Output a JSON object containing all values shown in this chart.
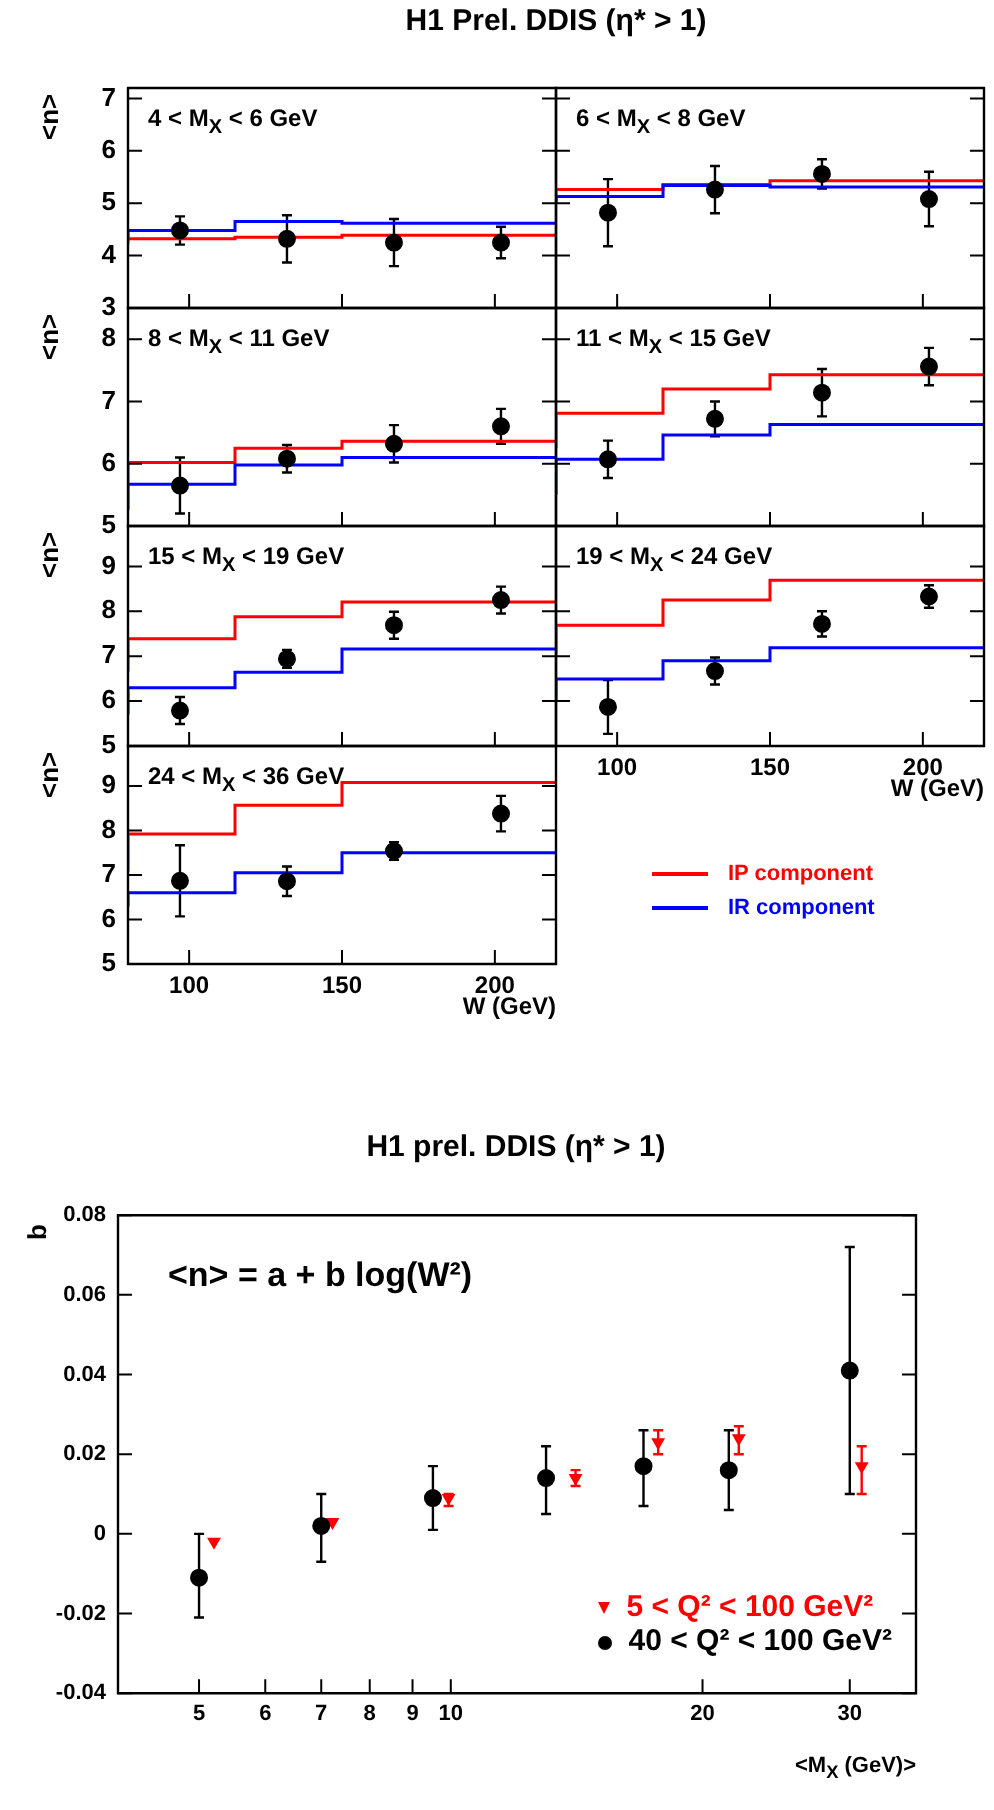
{
  "chart_data": [
    {
      "type": "step",
      "title": "H1 Prel. DDIS (η* > 1)",
      "ylabel": "<n>",
      "annotations": [
        "4 < M$_{X}$ < 6 GeV"
      ],
      "xlim": [
        80,
        220
      ],
      "xticks": [
        100,
        150,
        200
      ],
      "ylim": [
        3,
        7.2
      ],
      "yticks": [
        3,
        4,
        5,
        6,
        7
      ],
      "tick_labels": "y",
      "grid": false,
      "series": [
        {
          "color": "#ff0000",
          "x": [
            80,
            115,
            150,
            185,
            220
          ],
          "values": [
            4.23,
            4.32,
            4.35,
            4.39,
            4.39
          ]
        },
        {
          "color": "#0000ff",
          "x": [
            80,
            115,
            150,
            185,
            220
          ],
          "values": [
            4.34,
            4.48,
            4.65,
            4.62,
            4.62
          ]
        },
        {
          "type": "scatter",
          "color": "#000000",
          "marker": "circle",
          "x": [
            97,
            132,
            167,
            202
          ],
          "values": [
            4.48,
            4.32,
            4.25,
            4.25
          ],
          "errors": [
            0.27,
            0.45,
            0.45,
            0.3
          ]
        }
      ]
    },
    {
      "type": "step",
      "annotations": [
        "6 < M$_{X}$ < 8 GeV"
      ],
      "xlim": [
        80,
        220
      ],
      "xticks": [
        100,
        150,
        200
      ],
      "ylim": [
        3,
        7.2
      ],
      "yticks": [
        3,
        4,
        5,
        6,
        7
      ],
      "tick_labels": false,
      "grid": false,
      "series": [
        {
          "color": "#ff0000",
          "x": [
            80,
            115,
            150,
            185,
            220
          ],
          "values": [
            5.04,
            5.26,
            5.36,
            5.43,
            5.43
          ]
        },
        {
          "color": "#0000ff",
          "x": [
            80,
            115,
            150,
            185,
            220
          ],
          "values": [
            4.99,
            5.13,
            5.34,
            5.31,
            5.31
          ]
        },
        {
          "type": "scatter",
          "color": "#000000",
          "marker": "circle",
          "x": [
            97,
            132,
            167,
            202
          ],
          "values": [
            4.82,
            5.26,
            5.56,
            5.08
          ],
          "errors": [
            0.64,
            0.45,
            0.28,
            0.52
          ]
        }
      ]
    },
    {
      "type": "step",
      "ylabel": "<n>",
      "annotations": [
        "8 < M$_{X}$ < 11 GeV"
      ],
      "xlim": [
        80,
        220
      ],
      "xticks": [
        100,
        150,
        200
      ],
      "ylim": [
        5,
        8.5
      ],
      "yticks": [
        5,
        6,
        7,
        8
      ],
      "tick_labels": "y",
      "grid": false,
      "series": [
        {
          "color": "#ff0000",
          "x": [
            80,
            115,
            150,
            185,
            220
          ],
          "values": [
            5.67,
            6.02,
            6.25,
            6.36,
            6.36
          ]
        },
        {
          "color": "#0000ff",
          "x": [
            80,
            115,
            150,
            185,
            220
          ],
          "values": [
            5.26,
            5.67,
            5.98,
            6.1,
            6.1
          ]
        },
        {
          "type": "scatter",
          "color": "#000000",
          "marker": "circle",
          "x": [
            97,
            132,
            167,
            202
          ],
          "values": [
            5.65,
            6.08,
            6.32,
            6.6
          ],
          "errors": [
            0.45,
            0.22,
            0.3,
            0.28
          ]
        }
      ]
    },
    {
      "type": "step",
      "annotations": [
        "11 < M$_{X}$ < 15 GeV"
      ],
      "xlim": [
        80,
        220
      ],
      "xticks": [
        100,
        150,
        200
      ],
      "ylim": [
        5,
        8.5
      ],
      "yticks": [
        5,
        6,
        7,
        8
      ],
      "tick_labels": false,
      "grid": false,
      "series": [
        {
          "color": "#ff0000",
          "x": [
            80,
            115,
            150,
            185,
            220
          ],
          "values": [
            6.25,
            6.81,
            7.2,
            7.43,
            7.43
          ]
        },
        {
          "color": "#0000ff",
          "x": [
            80,
            115,
            150,
            185,
            220
          ],
          "values": [
            5.5,
            6.07,
            6.46,
            6.63,
            6.63
          ]
        },
        {
          "type": "scatter",
          "color": "#000000",
          "marker": "circle",
          "x": [
            97,
            132,
            167,
            202
          ],
          "values": [
            6.07,
            6.72,
            7.14,
            7.56
          ],
          "errors": [
            0.3,
            0.28,
            0.38,
            0.3
          ]
        }
      ]
    },
    {
      "type": "step",
      "ylabel": "<n>",
      "annotations": [
        "15 < M$_{X}$ < 19 GeV"
      ],
      "xlim": [
        80,
        220
      ],
      "xticks": [
        100,
        150,
        200
      ],
      "ylim": [
        5,
        9.9
      ],
      "yticks": [
        5,
        6,
        7,
        8,
        9
      ],
      "tick_labels": "y",
      "grid": false,
      "series": [
        {
          "color": "#ff0000",
          "x": [
            80,
            115,
            150,
            185,
            220
          ],
          "values": [
            6.66,
            7.39,
            7.88,
            8.21,
            8.21
          ]
        },
        {
          "color": "#0000ff",
          "x": [
            80,
            115,
            150,
            185,
            220
          ],
          "values": [
            5.7,
            6.3,
            6.64,
            7.16,
            7.16
          ]
        },
        {
          "type": "scatter",
          "color": "#000000",
          "marker": "circle",
          "x": [
            97,
            132,
            167,
            202
          ],
          "values": [
            5.79,
            6.94,
            7.69,
            8.25
          ],
          "errors": [
            0.3,
            0.2,
            0.3,
            0.3
          ]
        }
      ]
    },
    {
      "type": "step",
      "xlabel": "W (GeV)",
      "annotations": [
        "19 < M$_{X}$ < 24 GeV"
      ],
      "xlim": [
        80,
        220
      ],
      "xticks": [
        100,
        150,
        200
      ],
      "ylim": [
        5,
        9.9
      ],
      "yticks": [
        5,
        6,
        7,
        8,
        9
      ],
      "tick_labels": "x",
      "grid": false,
      "series": [
        {
          "color": "#ff0000",
          "x": [
            80,
            115,
            150,
            185,
            220
          ],
          "values": [
            7.04,
            7.69,
            8.25,
            8.69,
            8.69
          ]
        },
        {
          "color": "#0000ff",
          "x": [
            80,
            115,
            150,
            185,
            220
          ],
          "values": [
            6.0,
            6.49,
            6.9,
            7.19,
            7.19
          ]
        },
        {
          "type": "scatter",
          "color": "#000000",
          "marker": "circle",
          "x": [
            97,
            132,
            167,
            202
          ],
          "values": [
            5.87,
            6.67,
            7.72,
            8.33
          ],
          "errors": [
            0.6,
            0.3,
            0.28,
            0.25
          ]
        }
      ]
    },
    {
      "type": "step",
      "ylabel": "<n>",
      "xlabel": "W (GeV)",
      "annotations": [
        "24 < M$_{X}$ < 36 GeV"
      ],
      "xlim": [
        80,
        220
      ],
      "xticks": [
        100,
        150,
        200
      ],
      "ylim": [
        5,
        9.9
      ],
      "yticks": [
        5,
        6,
        7,
        8,
        9
      ],
      "grid": false,
      "legend": "right",
      "series": [
        {
          "name": "IP component",
          "color": "#ff0000",
          "x": [
            80,
            115,
            150,
            185,
            220
          ],
          "values": [
            7.08,
            7.92,
            8.57,
            9.08,
            9.08
          ]
        },
        {
          "name": "IR component",
          "color": "#0000ff",
          "x": [
            80,
            115,
            150,
            185,
            220
          ],
          "values": [
            6.29,
            6.6,
            7.05,
            7.5,
            7.5
          ]
        },
        {
          "type": "scatter",
          "color": "#000000",
          "marker": "circle",
          "x": [
            97,
            132,
            167,
            202
          ],
          "values": [
            6.87,
            6.86,
            7.54,
            8.38
          ],
          "errors": [
            0.8,
            0.33,
            0.2,
            0.4
          ]
        }
      ]
    },
    {
      "type": "scatter",
      "title": "H1 prel. DDIS (η* > 1)",
      "ylabel": "b",
      "xlabel": "<M$_{X}$ (GeV)>",
      "annotations": [
        "<n> = a + b log(W²)"
      ],
      "log": "x",
      "xlim": [
        4,
        36
      ],
      "xticks": [
        5,
        6,
        7,
        8,
        9,
        10,
        20,
        30
      ],
      "ylim": [
        -0.04,
        0.08
      ],
      "yticks": [
        -0.04,
        -0.02,
        0,
        0.02,
        0.04,
        0.06,
        0.08
      ],
      "grid": false,
      "legend": "bottom right",
      "series": [
        {
          "name": "5 < Q² < 100 GeV²",
          "color": "#ff0000",
          "marker": "triangle",
          "x": [
            5.21,
            7.22,
            9.94,
            14.1,
            17.7,
            22.1,
            31.0
          ],
          "values": [
            -0.002,
            0.003,
            0.009,
            0.014,
            0.023,
            0.024,
            0.017
          ],
          "errors": [
            null,
            null,
            [
              0.007,
              0.01
            ],
            [
              0.012,
              0.016
            ],
            [
              0.02,
              0.026
            ],
            [
              0.02,
              0.027
            ],
            [
              0.01,
              0.022
            ]
          ]
        },
        {
          "name": "40 < Q² < 100 GeV²",
          "color": "#000000",
          "marker": "circle",
          "x": [
            5,
            7,
            9.52,
            13,
            17,
            21.5,
            30
          ],
          "values": [
            -0.011,
            0.002,
            0.009,
            0.014,
            0.017,
            0.016,
            0.041
          ],
          "errors": [
            [
              -0.021,
              0
            ],
            [
              -0.007,
              0.01
            ],
            [
              0.001,
              0.017
            ],
            [
              0.005,
              0.022
            ],
            [
              0.007,
              0.026
            ],
            [
              0.006,
              0.026
            ],
            [
              0.01,
              0.072
            ]
          ]
        }
      ]
    }
  ]
}
